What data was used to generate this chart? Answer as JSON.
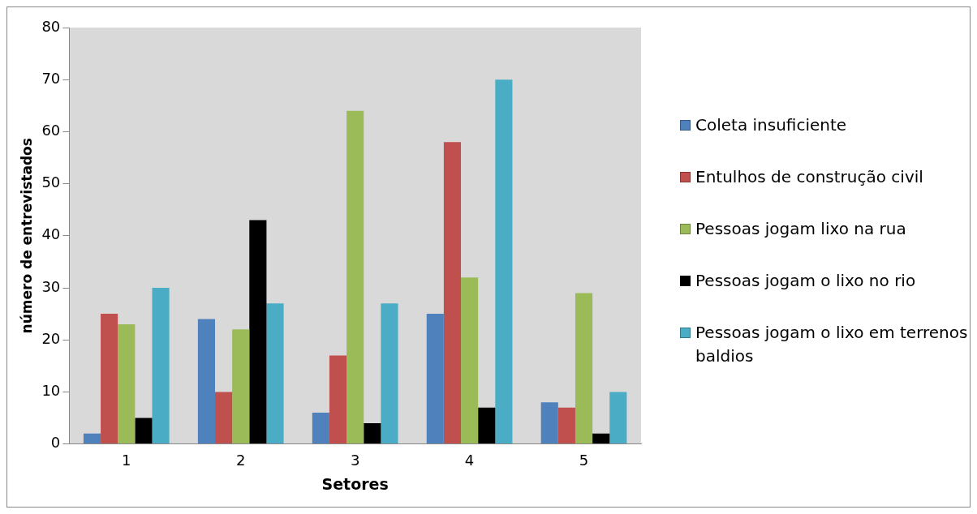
{
  "chart_data": {
    "type": "bar",
    "xlabel": "Setores",
    "ylabel": "número de entrevistados",
    "categories": [
      "1",
      "2",
      "3",
      "4",
      "5"
    ],
    "series": [
      {
        "name": "Coleta insuficiente",
        "color": "#4f81bd",
        "values": [
          2,
          24,
          6,
          25,
          8
        ]
      },
      {
        "name": "Entulhos de construção civil",
        "color": "#c0504d",
        "values": [
          25,
          10,
          17,
          58,
          7
        ]
      },
      {
        "name": "Pessoas jogam lixo na rua",
        "color": "#9bbb59",
        "values": [
          23,
          22,
          64,
          32,
          29
        ]
      },
      {
        "name": "Pessoas jogam o lixo no rio",
        "color": "#000000",
        "values": [
          5,
          43,
          4,
          7,
          2
        ]
      },
      {
        "name": "Pessoas jogam o lixo em terrenos baldios",
        "color": "#4bacc6",
        "values": [
          30,
          27,
          27,
          70,
          10
        ]
      }
    ],
    "ylim": [
      0,
      80
    ],
    "yticks": [
      0,
      10,
      20,
      30,
      40,
      50,
      60,
      70,
      80
    ],
    "grid": false,
    "legend": "right"
  }
}
